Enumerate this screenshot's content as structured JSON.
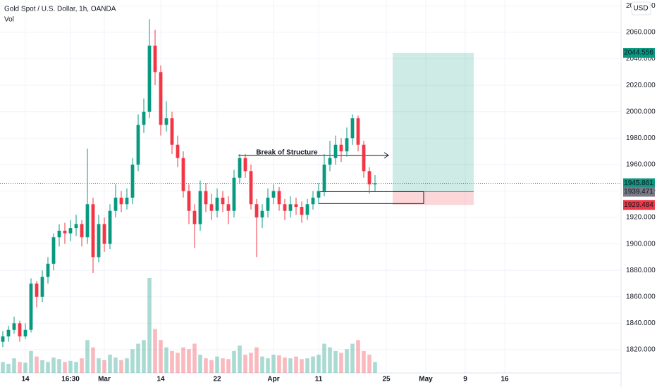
{
  "chart_data": {
    "type": "candlestick",
    "title": "Gold Spot / U.S. Dollar, 1h, OANDA",
    "volume_label": "Vol",
    "currency": "USD",
    "up_color": "#089981",
    "down_color": "#f23645",
    "categories": [
      null,
      null,
      null,
      null,
      "14",
      null,
      null,
      null,
      null,
      null,
      null,
      null,
      "16:30",
      null,
      null,
      null,
      null,
      null,
      "Mar",
      null,
      null,
      null,
      null,
      null,
      null,
      null,
      null,
      null,
      "14",
      null,
      null,
      null,
      null,
      null,
      null,
      null,
      null,
      null,
      "22",
      null,
      null,
      null,
      null,
      null,
      null,
      null,
      null,
      null,
      "Apr",
      null,
      null,
      null,
      null,
      null,
      null,
      null,
      "11",
      null,
      null,
      null,
      null,
      null,
      null,
      null,
      null,
      null,
      null,
      null,
      "25",
      null,
      null,
      null,
      null,
      null,
      null,
      "May",
      null,
      null,
      null,
      null,
      null,
      null,
      "9",
      null,
      null,
      null,
      null,
      null,
      null,
      "16",
      null,
      null,
      null,
      null,
      null,
      null,
      null,
      null,
      null,
      null,
      null,
      null,
      null,
      null,
      null,
      null,
      null,
      null,
      null,
      null
    ],
    "open": [
      1826,
      1830,
      1835,
      1840,
      1830,
      1835,
      1870,
      1860,
      1875,
      1885,
      1905,
      1910,
      1908,
      1912,
      1915,
      1905,
      1930,
      1890,
      1915,
      1900,
      1925,
      1935,
      1930,
      1935,
      1960,
      1990,
      2000,
      2050,
      2030,
      1990,
      1995,
      1975,
      1965,
      1940,
      1925,
      1915,
      1940,
      1930,
      1925,
      1935,
      1930,
      1925,
      1950,
      1965,
      1955,
      1930,
      1920,
      1925,
      1935,
      1940,
      1930,
      1925,
      1930,
      1928,
      1922,
      1930,
      1935,
      1940,
      1960,
      1965,
      1975,
      1970,
      1980,
      1995,
      1975,
      1955,
      1945,
      null,
      null,
      null,
      null,
      null,
      null,
      null,
      null,
      null,
      null,
      null,
      null,
      null,
      null,
      null,
      null,
      null,
      null,
      null,
      null,
      null,
      null,
      null,
      null,
      null,
      null,
      null,
      null,
      null,
      null,
      null,
      null,
      null,
      null,
      null,
      null,
      null,
      null,
      null,
      null,
      null,
      null,
      null
    ],
    "high": [
      1834,
      1838,
      1845,
      1842,
      1840,
      1874,
      1872,
      1880,
      1890,
      1908,
      1915,
      1916,
      1918,
      1922,
      1918,
      1972,
      1935,
      1922,
      1920,
      1930,
      1945,
      1940,
      1942,
      1965,
      1998,
      2010,
      2070,
      2062,
      2035,
      2008,
      2000,
      1982,
      1970,
      1945,
      1930,
      1948,
      1946,
      1938,
      1942,
      1940,
      1936,
      1956,
      1968,
      1968,
      1960,
      1934,
      1930,
      1942,
      1945,
      1943,
      1934,
      1936,
      1935,
      1932,
      1934,
      1940,
      1946,
      1968,
      1978,
      1982,
      1980,
      1988,
      1998,
      1997,
      1978,
      1958,
      1952,
      null,
      null,
      null,
      null,
      null,
      null,
      null,
      null,
      null,
      null,
      null,
      null,
      null,
      null,
      null,
      null,
      null,
      null,
      null,
      null,
      null,
      null,
      null,
      null,
      null,
      null,
      null,
      null,
      null,
      null,
      null,
      null,
      null,
      null,
      null,
      null,
      null,
      null,
      null,
      null,
      null,
      null,
      null
    ],
    "low": [
      1822,
      1826,
      1832,
      1826,
      1828,
      1833,
      1852,
      1856,
      1870,
      1880,
      1898,
      1900,
      1902,
      1906,
      1898,
      1900,
      1878,
      1886,
      1894,
      1896,
      1920,
      1924,
      1926,
      1930,
      1955,
      1984,
      1995,
      2020,
      1982,
      1985,
      1968,
      1958,
      1935,
      1915,
      1897,
      1910,
      1924,
      1918,
      1920,
      1924,
      1915,
      1920,
      1946,
      1950,
      1926,
      1890,
      1912,
      1920,
      1930,
      1925,
      1918,
      1920,
      1922,
      1916,
      1918,
      1926,
      1930,
      1936,
      1955,
      1960,
      1962,
      1966,
      1975,
      1970,
      1950,
      1938,
      1940,
      null,
      null,
      null,
      null,
      null,
      null,
      null,
      null,
      null,
      null,
      null,
      null,
      null,
      null,
      null,
      null,
      null,
      null,
      null,
      null,
      null,
      null,
      null,
      null,
      null,
      null,
      null,
      null,
      null,
      null,
      null,
      null,
      null,
      null,
      null,
      null,
      null,
      null,
      null,
      null,
      null,
      null,
      null
    ],
    "close": [
      1830,
      1835,
      1840,
      1830,
      1835,
      1870,
      1860,
      1875,
      1885,
      1905,
      1910,
      1908,
      1912,
      1915,
      1905,
      1930,
      1890,
      1915,
      1900,
      1925,
      1935,
      1930,
      1935,
      1960,
      1990,
      2000,
      2050,
      2030,
      1990,
      1995,
      1975,
      1965,
      1940,
      1925,
      1915,
      1940,
      1930,
      1925,
      1935,
      1930,
      1925,
      1950,
      1965,
      1955,
      1930,
      1920,
      1925,
      1935,
      1940,
      1930,
      1925,
      1930,
      1928,
      1922,
      1930,
      1935,
      1940,
      1960,
      1965,
      1975,
      1970,
      1980,
      1995,
      1975,
      1955,
      1945,
      1945.861,
      null,
      null,
      null,
      null,
      null,
      null,
      null,
      null,
      null,
      null,
      null,
      null,
      null,
      null,
      null,
      null,
      null,
      null,
      null,
      null,
      null,
      null,
      null,
      null,
      null,
      null,
      null,
      null,
      null,
      null,
      null,
      null,
      null,
      null,
      null,
      null,
      null,
      null,
      null,
      null,
      null,
      null,
      null
    ],
    "volume": [
      3000,
      2500,
      4000,
      3000,
      2800,
      6000,
      4500,
      3500,
      3000,
      4200,
      3800,
      3000,
      3300,
      3000,
      4000,
      9000,
      7000,
      4000,
      3500,
      5000,
      4200,
      3500,
      4000,
      6500,
      8000,
      9000,
      26000,
      12000,
      9000,
      7000,
      6000,
      5500,
      7000,
      6500,
      8000,
      5000,
      4000,
      3500,
      4500,
      4000,
      3800,
      6000,
      7500,
      5000,
      5500,
      7000,
      4500,
      4000,
      5000,
      4800,
      4200,
      4000,
      4500,
      3800,
      4000,
      4500,
      5000,
      8000,
      7000,
      6000,
      5500,
      6500,
      8000,
      9000,
      6000,
      5000,
      3000,
      null,
      null,
      null,
      null,
      null,
      null,
      null,
      null,
      null,
      null,
      null,
      null,
      null,
      null,
      null,
      null,
      null,
      null,
      null,
      null,
      null,
      null,
      null,
      null,
      null,
      null,
      null,
      null,
      null,
      null,
      null,
      null,
      null,
      null,
      null,
      null,
      null,
      null,
      null,
      null,
      null,
      null,
      null
    ],
    "ylim": [
      1802.4,
      2084.5
    ],
    "yticks": [
      {
        "value": 1820,
        "label": "1820.000"
      },
      {
        "value": 1840,
        "label": "1840.000"
      },
      {
        "value": 1860,
        "label": "1860.000"
      },
      {
        "value": 1880,
        "label": "1880.000"
      },
      {
        "value": 1900,
        "label": "1900.000"
      },
      {
        "value": 1920,
        "label": "1920.000"
      },
      {
        "value": 1940,
        "label": "1940.000"
      },
      {
        "value": 1960,
        "label": "1960.000"
      },
      {
        "value": 1980,
        "label": "1980.000"
      },
      {
        "value": 2000,
        "label": "2000.000"
      },
      {
        "value": 2020,
        "label": "2020.000"
      },
      {
        "value": 2040,
        "label": "2040.000"
      },
      {
        "value": 2060,
        "label": "2060.000"
      },
      {
        "value": 2080,
        "label": "2080.000"
      }
    ],
    "grid": true,
    "last_price": 1945.861,
    "position": {
      "target": 2044.556,
      "entry": 1939.471,
      "stop": 1929.484
    },
    "annotation": {
      "text": "Break of Structure",
      "level": 1967
    },
    "zone": [
      1930.5,
      1939.5
    ]
  }
}
